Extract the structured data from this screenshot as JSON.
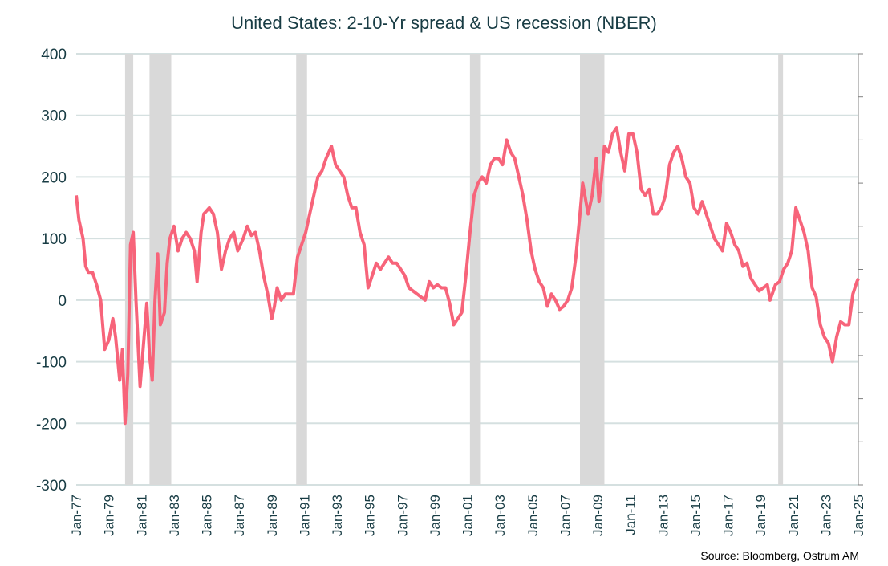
{
  "chart_data": {
    "type": "line",
    "title": "United States: 2-10-Yr spread & US recession (NBER)",
    "source": "Source: Bloomberg,  Ostrum  AM",
    "ylim": [
      -300,
      400
    ],
    "yticks": [
      400,
      300,
      200,
      100,
      0,
      -100,
      -200,
      -300
    ],
    "ytick_labels": [
      "400",
      "300",
      "200",
      "100",
      "0",
      "-100",
      "-200",
      "-300"
    ],
    "xlim": [
      "1977-01",
      "2025-01"
    ],
    "xtick_labels": [
      "Jan-77",
      "Jan-79",
      "Jan-81",
      "Jan-83",
      "Jan-85",
      "Jan-87",
      "Jan-89",
      "Jan-91",
      "Jan-93",
      "Jan-95",
      "Jan-97",
      "Jan-99",
      "Jan-01",
      "Jan-03",
      "Jan-05",
      "Jan-07",
      "Jan-09",
      "Jan-11",
      "Jan-13",
      "Jan-15",
      "Jan-17",
      "Jan-19",
      "Jan-21",
      "Jan-23",
      "Jan-25"
    ],
    "grid": true,
    "line_color": "#F7647A",
    "recession_color": "#D9D9D9",
    "grid_color": "#D5E0E0",
    "recessions": [
      [
        "1980-01",
        "1980-07"
      ],
      [
        "1981-07",
        "1982-11"
      ],
      [
        "1990-07",
        "1991-03"
      ],
      [
        "2001-03",
        "2001-11"
      ],
      [
        "2007-12",
        "2009-06"
      ],
      [
        "2020-02",
        "2020-04"
      ]
    ],
    "series": [
      {
        "x": [
          "1977-01",
          "1977-03",
          "1977-06",
          "1977-08",
          "1977-10",
          "1978-01",
          "1978-04",
          "1978-07",
          "1978-10",
          "1979-01",
          "1979-04",
          "1979-06",
          "1979-09",
          "1979-11",
          "1980-01",
          "1980-03",
          "1980-05",
          "1980-07",
          "1980-09",
          "1980-12",
          "1981-03",
          "1981-05",
          "1981-07",
          "1981-09",
          "1981-11",
          "1982-01",
          "1982-03",
          "1982-06",
          "1982-08",
          "1982-10",
          "1983-01",
          "1983-04",
          "1983-07",
          "1983-10",
          "1984-01",
          "1984-04",
          "1984-06",
          "1984-09",
          "1984-11",
          "1985-03",
          "1985-06",
          "1985-09",
          "1985-12",
          "1986-03",
          "1986-06",
          "1986-09",
          "1986-12",
          "1987-04",
          "1987-07",
          "1987-10",
          "1988-01",
          "1988-04",
          "1988-07",
          "1988-10",
          "1989-01",
          "1989-03",
          "1989-05",
          "1989-08",
          "1989-11",
          "1990-02",
          "1990-05",
          "1990-08",
          "1990-11",
          "1991-02",
          "1991-05",
          "1991-08",
          "1991-11",
          "1992-02",
          "1992-05",
          "1992-09",
          "1992-12",
          "1993-03",
          "1993-06",
          "1993-09",
          "1993-12",
          "1994-03",
          "1994-06",
          "1994-09",
          "1994-12",
          "1995-03",
          "1995-06",
          "1995-09",
          "1995-12",
          "1996-03",
          "1996-06",
          "1996-09",
          "1996-12",
          "1997-03",
          "1997-06",
          "1997-09",
          "1997-12",
          "1998-03",
          "1998-06",
          "1998-09",
          "1998-12",
          "1999-03",
          "1999-06",
          "1999-09",
          "1999-12",
          "2000-03",
          "2000-06",
          "2000-09",
          "2000-12",
          "2001-03",
          "2001-06",
          "2001-09",
          "2001-12",
          "2002-03",
          "2002-06",
          "2002-09",
          "2002-12",
          "2003-03",
          "2003-06",
          "2003-09",
          "2003-12",
          "2004-03",
          "2004-06",
          "2004-09",
          "2004-12",
          "2005-03",
          "2005-06",
          "2005-09",
          "2005-12",
          "2006-03",
          "2006-06",
          "2006-09",
          "2006-12",
          "2007-03",
          "2007-06",
          "2007-09",
          "2007-12",
          "2008-02",
          "2008-06",
          "2008-09",
          "2008-12",
          "2009-02",
          "2009-04",
          "2009-06",
          "2009-09",
          "2009-12",
          "2010-03",
          "2010-06",
          "2010-09",
          "2010-12",
          "2011-03",
          "2011-06",
          "2011-09",
          "2011-12",
          "2012-03",
          "2012-06",
          "2012-09",
          "2012-12",
          "2013-03",
          "2013-06",
          "2013-09",
          "2013-12",
          "2014-03",
          "2014-06",
          "2014-09",
          "2014-12",
          "2015-03",
          "2015-06",
          "2015-09",
          "2015-12",
          "2016-03",
          "2016-06",
          "2016-09",
          "2016-12",
          "2017-03",
          "2017-06",
          "2017-09",
          "2017-12",
          "2018-03",
          "2018-06",
          "2018-09",
          "2018-12",
          "2019-03",
          "2019-06",
          "2019-08",
          "2019-12",
          "2020-03",
          "2020-06",
          "2020-09",
          "2020-12",
          "2021-03",
          "2021-06",
          "2021-09",
          "2021-12",
          "2022-03",
          "2022-06",
          "2022-09",
          "2022-12",
          "2023-03",
          "2023-06",
          "2023-09",
          "2023-12",
          "2024-03",
          "2024-06",
          "2024-09",
          "2024-12",
          "2025-01"
        ],
        "values": [
          170,
          130,
          100,
          55,
          45,
          45,
          25,
          0,
          -80,
          -65,
          -30,
          -60,
          -130,
          -80,
          -200,
          -120,
          90,
          110,
          0,
          -140,
          -60,
          -5,
          -90,
          -130,
          0,
          75,
          -40,
          -20,
          60,
          100,
          120,
          80,
          100,
          110,
          100,
          80,
          30,
          110,
          140,
          150,
          140,
          110,
          50,
          80,
          100,
          110,
          80,
          100,
          120,
          105,
          110,
          80,
          40,
          10,
          -30,
          -10,
          20,
          0,
          10,
          10,
          10,
          70,
          90,
          110,
          140,
          170,
          200,
          210,
          230,
          250,
          220,
          210,
          200,
          170,
          150,
          150,
          110,
          90,
          20,
          40,
          60,
          50,
          60,
          70,
          60,
          60,
          50,
          40,
          20,
          15,
          10,
          5,
          0,
          30,
          20,
          25,
          20,
          20,
          -5,
          -40,
          -30,
          -20,
          40,
          110,
          170,
          190,
          200,
          190,
          220,
          230,
          230,
          220,
          260,
          240,
          230,
          200,
          170,
          130,
          80,
          50,
          30,
          20,
          -10,
          10,
          0,
          -15,
          -10,
          0,
          20,
          70,
          140,
          190,
          140,
          170,
          230,
          160,
          200,
          250,
          240,
          270,
          280,
          240,
          210,
          270,
          270,
          240,
          180,
          170,
          180,
          140,
          140,
          150,
          170,
          220,
          240,
          250,
          230,
          200,
          190,
          150,
          140,
          160,
          140,
          120,
          100,
          90,
          80,
          125,
          110,
          90,
          80,
          55,
          60,
          35,
          25,
          15,
          20,
          25,
          0,
          25,
          30,
          50,
          60,
          80,
          150,
          130,
          110,
          80,
          20,
          5,
          -40,
          -60,
          -70,
          -100,
          -60,
          -35,
          -40,
          -40,
          10,
          30,
          35
        ]
      }
    ]
  }
}
